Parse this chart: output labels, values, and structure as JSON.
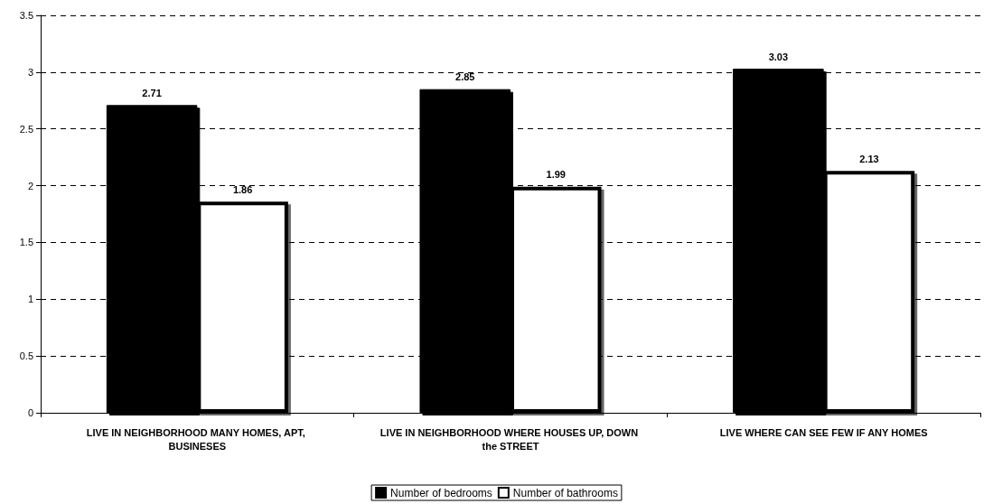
{
  "chart_data": {
    "type": "bar",
    "categories": [
      "LIVE IN NEIGHBORHOOD MANY HOMES, APT, BUSINESES",
      "LIVE IN NEIGHBORHOOD WHERE HOUSES UP, DOWN the STREET",
      "LIVE WHERE CAN SEE FEW IF ANY HOMES"
    ],
    "series": [
      {
        "name": "Number of bedrooms",
        "color": "#000000",
        "values": [
          2.71,
          2.85,
          3.03
        ]
      },
      {
        "name": "Number of bathrooms",
        "color": "#ffffff",
        "values": [
          1.86,
          1.99,
          2.13
        ]
      }
    ],
    "ylim": [
      0,
      3.5
    ],
    "yticks": [
      0,
      0.5,
      1,
      1.5,
      2,
      2.5,
      3,
      3.5
    ],
    "grid": "y",
    "legend": "bottom",
    "data_labels": true
  }
}
